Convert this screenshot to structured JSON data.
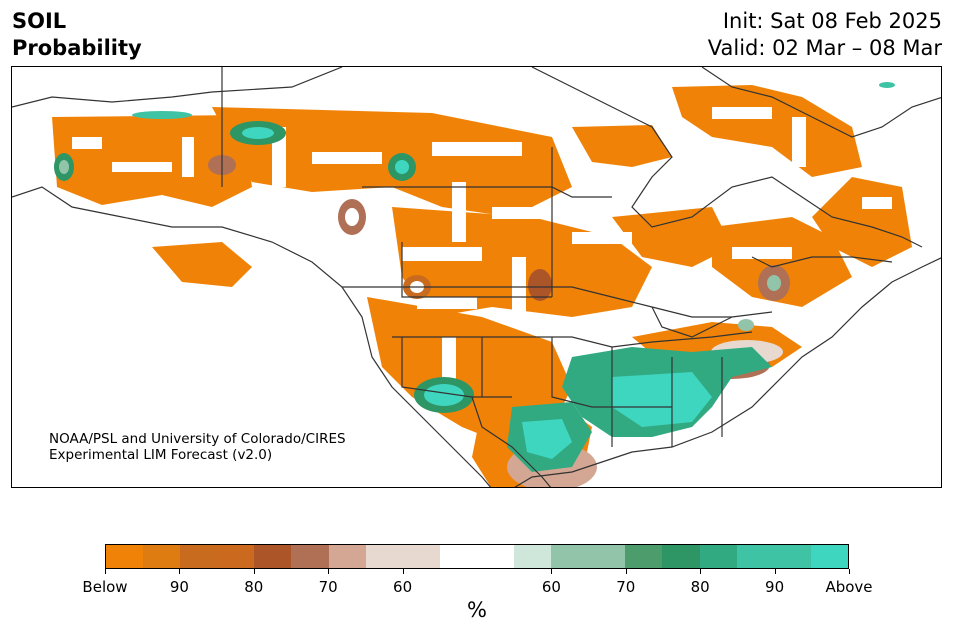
{
  "header": {
    "title_line1": "SOIL",
    "title_line2": "Probability",
    "init_text": "Init: Sat 08 Feb 2025",
    "valid_text": "Valid: 02 Mar – 08 Mar"
  },
  "credit": {
    "line1": "NOAA/PSL and University of Colorado/CIRES",
    "line2": "Experimental LIM Forecast (v2.0)"
  },
  "colorbar": {
    "colors": [
      "#f08307",
      "#de7c12",
      "#c96b1f",
      "#cb6a1e",
      "#ac5528",
      "#b07055",
      "#d3a793",
      "#e8d9d0",
      "#e8d9d0",
      "#ffffff",
      "#ffffff",
      "#cfe6da",
      "#92c4aa",
      "#92c4aa",
      "#4c9c6c",
      "#2e9565",
      "#31aa81",
      "#3ec3a5",
      "#3ec3a5",
      "#3fd6c0"
    ],
    "labels": [
      "Below",
      "90",
      "80",
      "70",
      "60",
      "60",
      "70",
      "80",
      "90",
      "Above"
    ],
    "unit": "%"
  },
  "map": {
    "below_color": "#f08307",
    "above_color": "#3fd6c0",
    "border_color": "#333333"
  }
}
